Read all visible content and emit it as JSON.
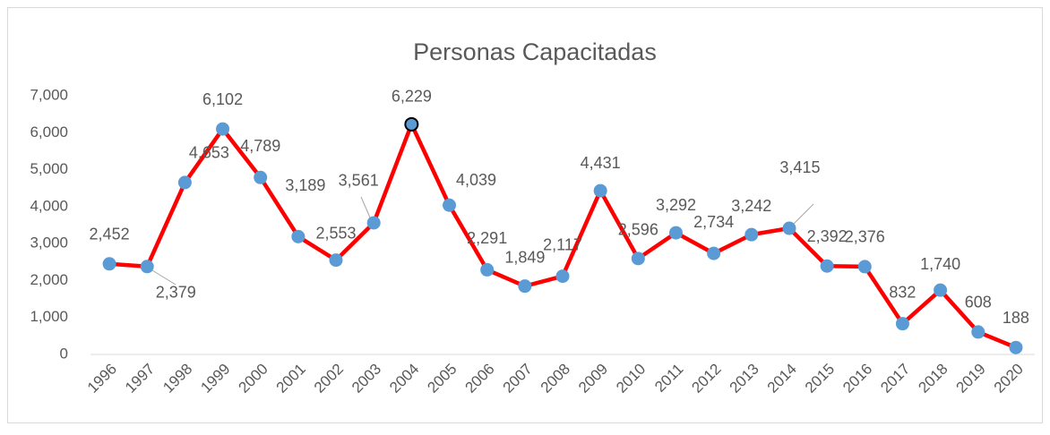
{
  "chart_data": {
    "type": "line",
    "title": "Personas Capacitadas",
    "categories": [
      "1996",
      "1997",
      "1998",
      "1999",
      "2000",
      "2001",
      "2002",
      "2003",
      "2004",
      "2005",
      "2006",
      "2007",
      "2008",
      "2009",
      "2010",
      "2011",
      "2012",
      "2013",
      "2014",
      "2015",
      "2016",
      "2017",
      "2018",
      "2019",
      "2020"
    ],
    "series": [
      {
        "name": "Personas Capacitadas",
        "color": "#ff0000",
        "marker_color": "#5b9bd5",
        "values": [
          2452,
          2379,
          4653,
          6102,
          4789,
          3189,
          2553,
          3561,
          6229,
          4039,
          2291,
          1849,
          2117,
          4431,
          2596,
          3292,
          2734,
          3242,
          3415,
          2392,
          2376,
          832,
          1740,
          608,
          188
        ],
        "value_labels": [
          "2,452",
          "2,379",
          "4,653",
          "6,102",
          "4,789",
          "3,189",
          "2,553",
          "3,561",
          "6,229",
          "4,039",
          "2,291",
          "1,849",
          "2,117",
          "4,431",
          "2,596",
          "3,292",
          "2,734",
          "3,242",
          "3,415",
          "2,392",
          "2,376",
          "832",
          "1,740",
          "608",
          "188"
        ]
      }
    ],
    "ylim": [
      0,
      7000
    ],
    "yticks": [
      0,
      {
        "value": 1000,
        "label": "1,000"
      },
      {
        "value": 2000,
        "label": "2,000"
      },
      {
        "value": 3000,
        "label": "3,000"
      },
      {
        "value": 4000,
        "label": "4,000"
      },
      {
        "value": 5000,
        "label": "5,000"
      },
      {
        "value": 6000,
        "label": "6,000"
      },
      {
        "value": 7000,
        "label": "7,000"
      }
    ],
    "grid": false
  }
}
